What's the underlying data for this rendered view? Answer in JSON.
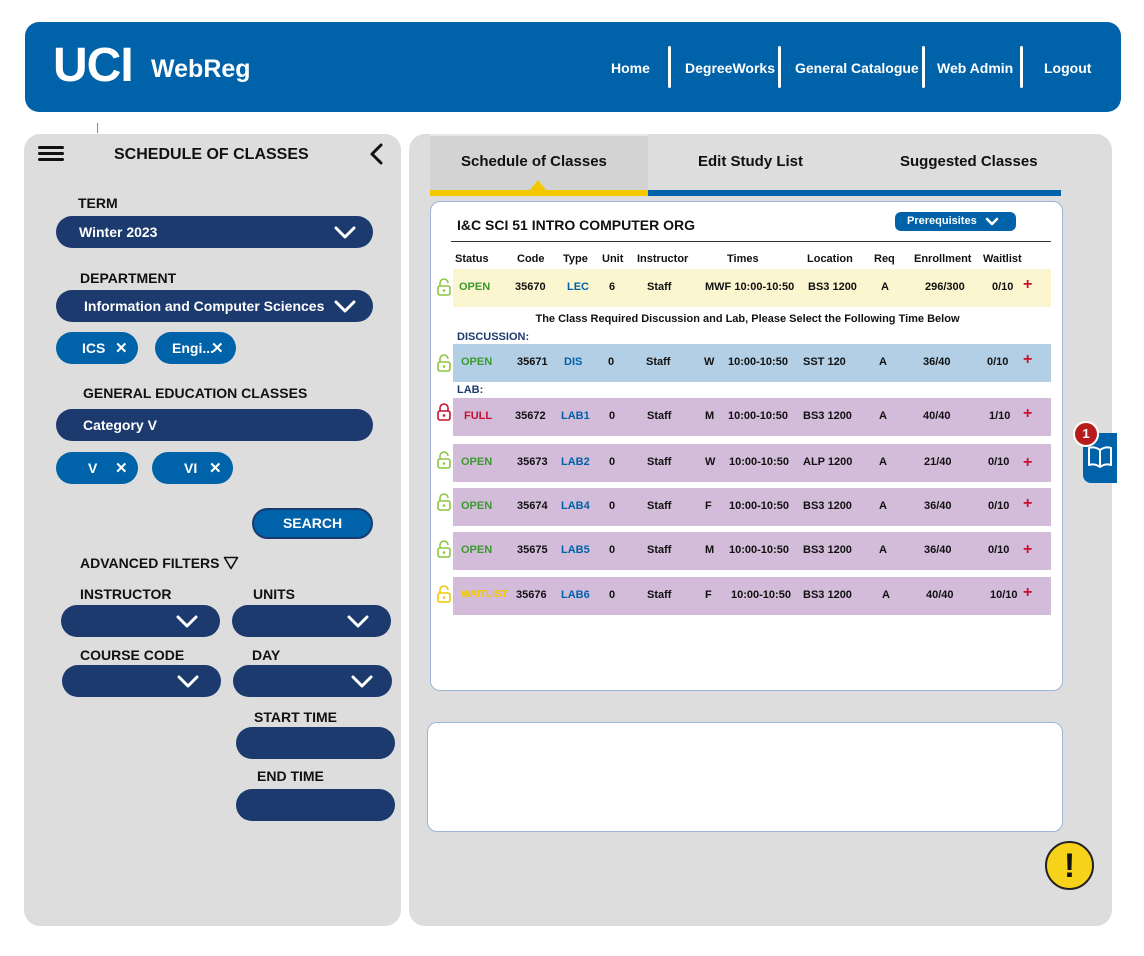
{
  "header": {
    "logo_primary": "UCI",
    "logo_secondary": "WebReg",
    "nav": [
      "Home",
      "DegreeWorks",
      "General Catalogue",
      "Web Admin",
      "Logout"
    ]
  },
  "sidebar": {
    "title": "SCHEDULE OF CLASSES",
    "term_label": "TERM",
    "term_value": "Winter 2023",
    "department_label": "DEPARTMENT",
    "department_value": "Information and Computer Sciences",
    "department_chips": [
      "ICS",
      "Engi..."
    ],
    "ge_label": "GENERAL EDUCATION CLASSES",
    "ge_value": "Category V",
    "ge_chips": [
      "V",
      "VI"
    ],
    "search_label": "SEARCH",
    "advanced_label": "ADVANCED FILTERS",
    "instructor_label": "INSTRUCTOR",
    "units_label": "UNITS",
    "course_code_label": "COURSE CODE",
    "day_label": "DAY",
    "start_time_label": "START TIME",
    "end_time_label": "END TIME"
  },
  "tabs": [
    "Schedule of Classes",
    "Edit Study List",
    "Suggested Classes"
  ],
  "course": {
    "title": "I&C SCI 51 INTRO COMPUTER ORG",
    "prereq_label": "Prerequisites",
    "headers": [
      "Status",
      "Code",
      "Type",
      "Unit",
      "Instructor",
      "Times",
      "Location",
      "Req",
      "Enrollment",
      "Waitlist"
    ],
    "notice": "The Class Required Discussion and Lab, Please Select the Following Time Below",
    "discussion_label": "DISCUSSION:",
    "lab_label": "LAB:",
    "lecture": {
      "status": "OPEN",
      "code": "35670",
      "type": "LEC",
      "unit": "6",
      "instructor": "Staff",
      "times": "MWF 10:00-10:50",
      "location": "BS3 1200",
      "req": "A",
      "enrollment": "296/300",
      "waitlist": "0/10"
    },
    "discussion": {
      "status": "OPEN",
      "code": "35671",
      "type": "DIS",
      "unit": "0",
      "instructor": "Staff",
      "day": "W",
      "time": "10:00-10:50",
      "location": "SST 120",
      "req": "A",
      "enrollment": "36/40",
      "waitlist": "0/10"
    },
    "labs": [
      {
        "status": "FULL",
        "code": "35672",
        "type": "LAB1",
        "unit": "0",
        "instructor": "Staff",
        "day": "M",
        "time": "10:00-10:50",
        "location": "BS3 1200",
        "req": "A",
        "enrollment": "40/40",
        "waitlist": "1/10"
      },
      {
        "status": "OPEN",
        "code": "35673",
        "type": "LAB2",
        "unit": "0",
        "instructor": "Staff",
        "day": "W",
        "time": "10:00-10:50",
        "location": "ALP 1200",
        "req": "A",
        "enrollment": "21/40",
        "waitlist": "0/10"
      },
      {
        "status": "OPEN",
        "code": "35674",
        "type": "LAB4",
        "unit": "0",
        "instructor": "Staff",
        "day": "F",
        "time": "10:00-10:50",
        "location": "BS3 1200",
        "req": "A",
        "enrollment": "36/40",
        "waitlist": "0/10"
      },
      {
        "status": "OPEN",
        "code": "35675",
        "type": "LAB5",
        "unit": "0",
        "instructor": "Staff",
        "day": "M",
        "time": "10:00-10:50",
        "location": "BS3 1200",
        "req": "A",
        "enrollment": "36/40",
        "waitlist": "0/10"
      },
      {
        "status": "WAITLIST",
        "code": "35676",
        "type": "LAB6",
        "unit": "0",
        "instructor": "Staff",
        "day": "F",
        "time": "10:00-10:50",
        "location": "BS3 1200",
        "req": "A",
        "enrollment": "40/40",
        "waitlist": "10/10"
      }
    ]
  },
  "study_list_badge": "1",
  "alert_symbol": "!",
  "colors": {
    "brand_blue": "#0062a8",
    "navy": "#1c3a6e",
    "open_green": "#3a9a2e",
    "full_red": "#c8102e",
    "waitlist_yellow": "#f3c800",
    "lecture_row": "#fbf6cf",
    "discussion_row": "#b3cfe5",
    "lab_row": "#d2bcd9"
  }
}
